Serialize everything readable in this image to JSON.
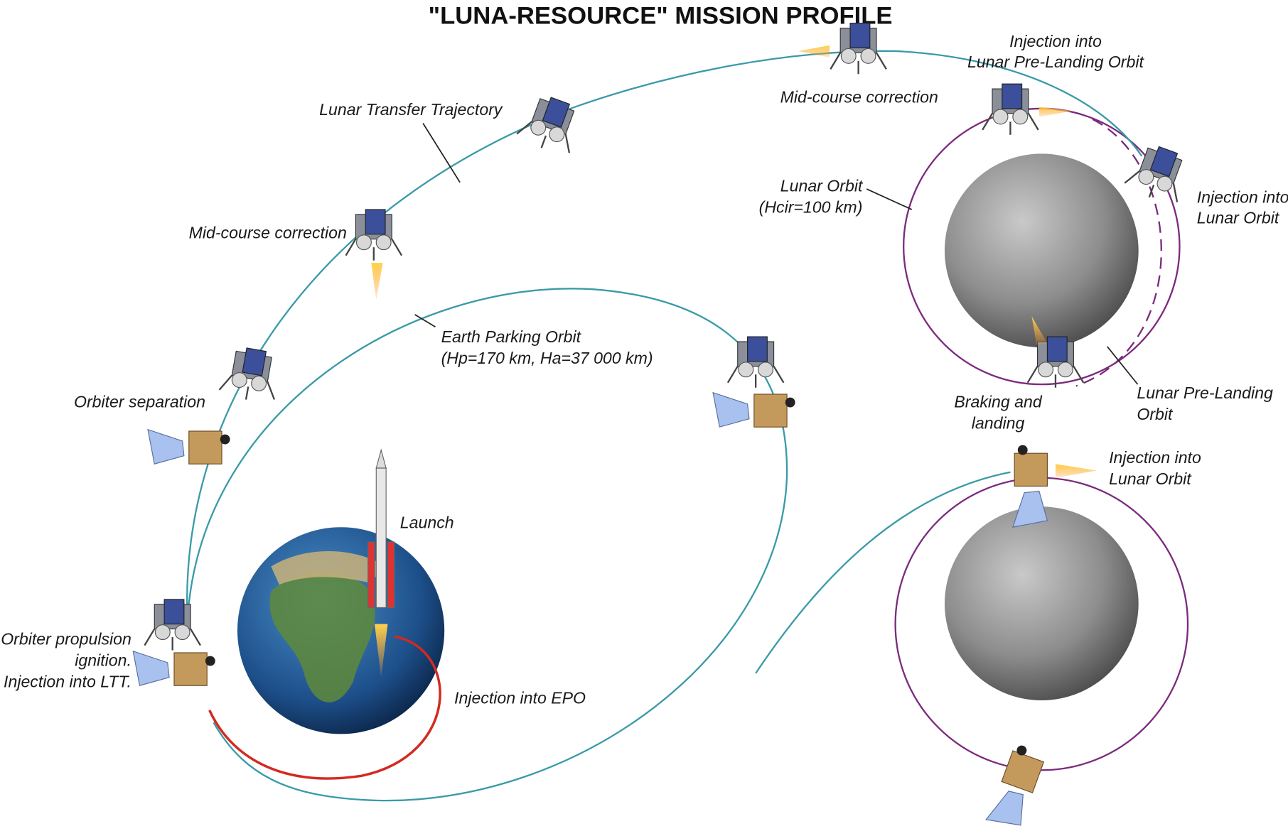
{
  "header": {
    "title": "\"LUNA-RESOURCE\" MISSION PROFILE"
  },
  "labels": [
    {
      "lines": [
        "Lunar Transfer Trajectory"
      ]
    },
    {
      "lines": [
        "Mid-course correction"
      ]
    },
    {
      "lines": [
        "Orbiter separation"
      ]
    },
    {
      "lines": [
        "Orbiter propulsion",
        "ignition.",
        "Injection into LTT."
      ]
    },
    {
      "lines": [
        "Launch"
      ]
    },
    {
      "lines": [
        "Injection into EPO"
      ]
    },
    {
      "lines": [
        "Earth Parking Orbit",
        "(Hp=170 km, Ha=37 000 km)"
      ]
    },
    {
      "lines": [
        "Mid-course correction"
      ]
    },
    {
      "lines": [
        "Injection into",
        "Lunar Pre-Landing Orbit"
      ]
    },
    {
      "lines": [
        "Lunar Orbit",
        "(Hcir=100 km)"
      ]
    },
    {
      "lines": [
        "Injection into",
        "Lunar Orbit"
      ]
    },
    {
      "lines": [
        "Braking and",
        "landing"
      ]
    },
    {
      "lines": [
        "Lunar Pre-Landing",
        "Orbit"
      ]
    },
    {
      "lines": [
        "Injection into",
        "Lunar Orbit"
      ]
    }
  ]
}
